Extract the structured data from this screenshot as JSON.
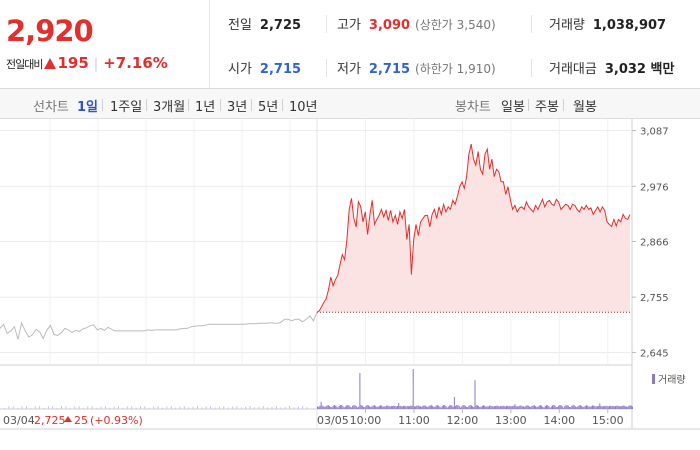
{
  "quote": {
    "current_price": "2,920",
    "change_label": "전일대비",
    "change_amount": "195",
    "change_percent": "+7.16%",
    "prev_close_label": "전일",
    "prev_close": "2,725",
    "open_label": "시가",
    "open": "2,715",
    "high_label": "고가",
    "high": "3,090",
    "upper_limit": "(상한가 3,540)",
    "low_label": "저가",
    "low": "2,715",
    "lower_limit": "(하한가 1,910)",
    "volume_label": "거래량",
    "volume": "1,038,907",
    "amount_label": "거래대금",
    "amount": "3,032 백만"
  },
  "toolbar": {
    "line_label": "선차트",
    "line_periods": [
      "1일",
      "1주일",
      "3개월",
      "1년",
      "3년",
      "5년",
      "10년"
    ],
    "active_period": "1일",
    "candle_label": "봉차트",
    "candle_periods": [
      "일봉",
      "주봉",
      "월봉"
    ]
  },
  "colors": {
    "up": "#e0302e",
    "down": "#2f64d2",
    "volume_bar": "#8d7ac4",
    "area_fill": "#fbe3e3",
    "prev_line": "#bbbbbb"
  },
  "chart_data": {
    "type": "line",
    "title": "",
    "ylim": [
      2620,
      3110
    ],
    "y_ticks": [
      3087,
      2976,
      2866,
      2755,
      2645
    ],
    "y_tick_labels": [
      "3,087",
      "2,976",
      "2,866",
      "2,755",
      "2,645"
    ],
    "reference_line": 2725,
    "x_tick_labels": [
      "03/04",
      "03/05",
      "10:00",
      "11:00",
      "12:00",
      "13:00",
      "14:00",
      "15:00"
    ],
    "prev_day": {
      "label": "03/04",
      "close": "2,725",
      "change": "25",
      "change_percent": "(+0.93%)",
      "values": [
        2693,
        2701,
        2683,
        2688,
        2696,
        2671,
        2704,
        2688,
        2676,
        2680,
        2691,
        2686,
        2673,
        2689,
        2699,
        2681,
        2679,
        2684,
        2693,
        2690,
        2685,
        2689,
        2687,
        2692,
        2694,
        2698,
        2700,
        2690,
        2693,
        2689,
        2695,
        2691,
        2688,
        2688,
        2688,
        2688,
        2688,
        2688,
        2688,
        2688,
        2688,
        2690,
        2689,
        2690,
        2690,
        2690,
        2690,
        2690,
        2690,
        2690,
        2692,
        2693,
        2693,
        2696,
        2697,
        2698,
        2698,
        2699,
        2701,
        2701,
        2701,
        2701,
        2701,
        2701,
        2701,
        2701,
        2701,
        2701,
        2701,
        2702,
        2702,
        2702,
        2703,
        2703,
        2703,
        2704,
        2703,
        2703,
        2705,
        2711,
        2711,
        2708,
        2711,
        2711,
        2706,
        2711,
        2718,
        2708,
        2725
      ]
    },
    "series": [
      {
        "name": "03/05",
        "values": [
          2725,
          2728,
          2736,
          2745,
          2752,
          2770,
          2795,
          2778,
          2790,
          2798,
          2820,
          2840,
          2830,
          2870,
          2930,
          2952,
          2912,
          2895,
          2945,
          2936,
          2905,
          2925,
          2880,
          2920,
          2948,
          2900,
          2910,
          2918,
          2930,
          2915,
          2928,
          2908,
          2928,
          2905,
          2918,
          2900,
          2925,
          2912,
          2930,
          2870,
          2900,
          2800,
          2870,
          2900,
          2878,
          2905,
          2912,
          2918,
          2918,
          2895,
          2920,
          2930,
          2912,
          2935,
          2920,
          2940,
          2925,
          2935,
          2930,
          2948,
          2940,
          2956,
          2975,
          2985,
          2972,
          2995,
          3040,
          3060,
          3030,
          3018,
          3045,
          3010,
          3000,
          3040,
          3050,
          3010,
          3030,
          2995,
          3010,
          3005,
          2985,
          2985,
          2960,
          2975,
          2950,
          2930,
          2938,
          2925,
          2933,
          2935,
          2930,
          2945,
          2935,
          2930,
          2925,
          2938,
          2930,
          2940,
          2950,
          2935,
          2945,
          2948,
          2940,
          2938,
          2950,
          2944,
          2930,
          2935,
          2940,
          2938,
          2930,
          2940,
          2938,
          2930,
          2925,
          2935,
          2930,
          2938,
          2930,
          2933,
          2920,
          2928,
          2935,
          2925,
          2935,
          2928,
          2905,
          2900,
          2896,
          2910,
          2897,
          2910,
          2905,
          2920,
          2912,
          2910,
          2920
        ]
      }
    ],
    "volume_series": {
      "name": "거래량",
      "peaks": [
        {
          "time": "09:52",
          "value": 0.9
        },
        {
          "time": "10:59",
          "value": 1.0
        },
        {
          "time": "12:15",
          "value": 0.72
        },
        {
          "time": "11:50",
          "value": 0.3
        },
        {
          "time": "09:05",
          "value": 0.18
        },
        {
          "time": "10:40",
          "value": 0.15
        },
        {
          "time": "13:05",
          "value": 0.12
        },
        {
          "time": "14:50",
          "value": 0.14
        }
      ]
    }
  }
}
